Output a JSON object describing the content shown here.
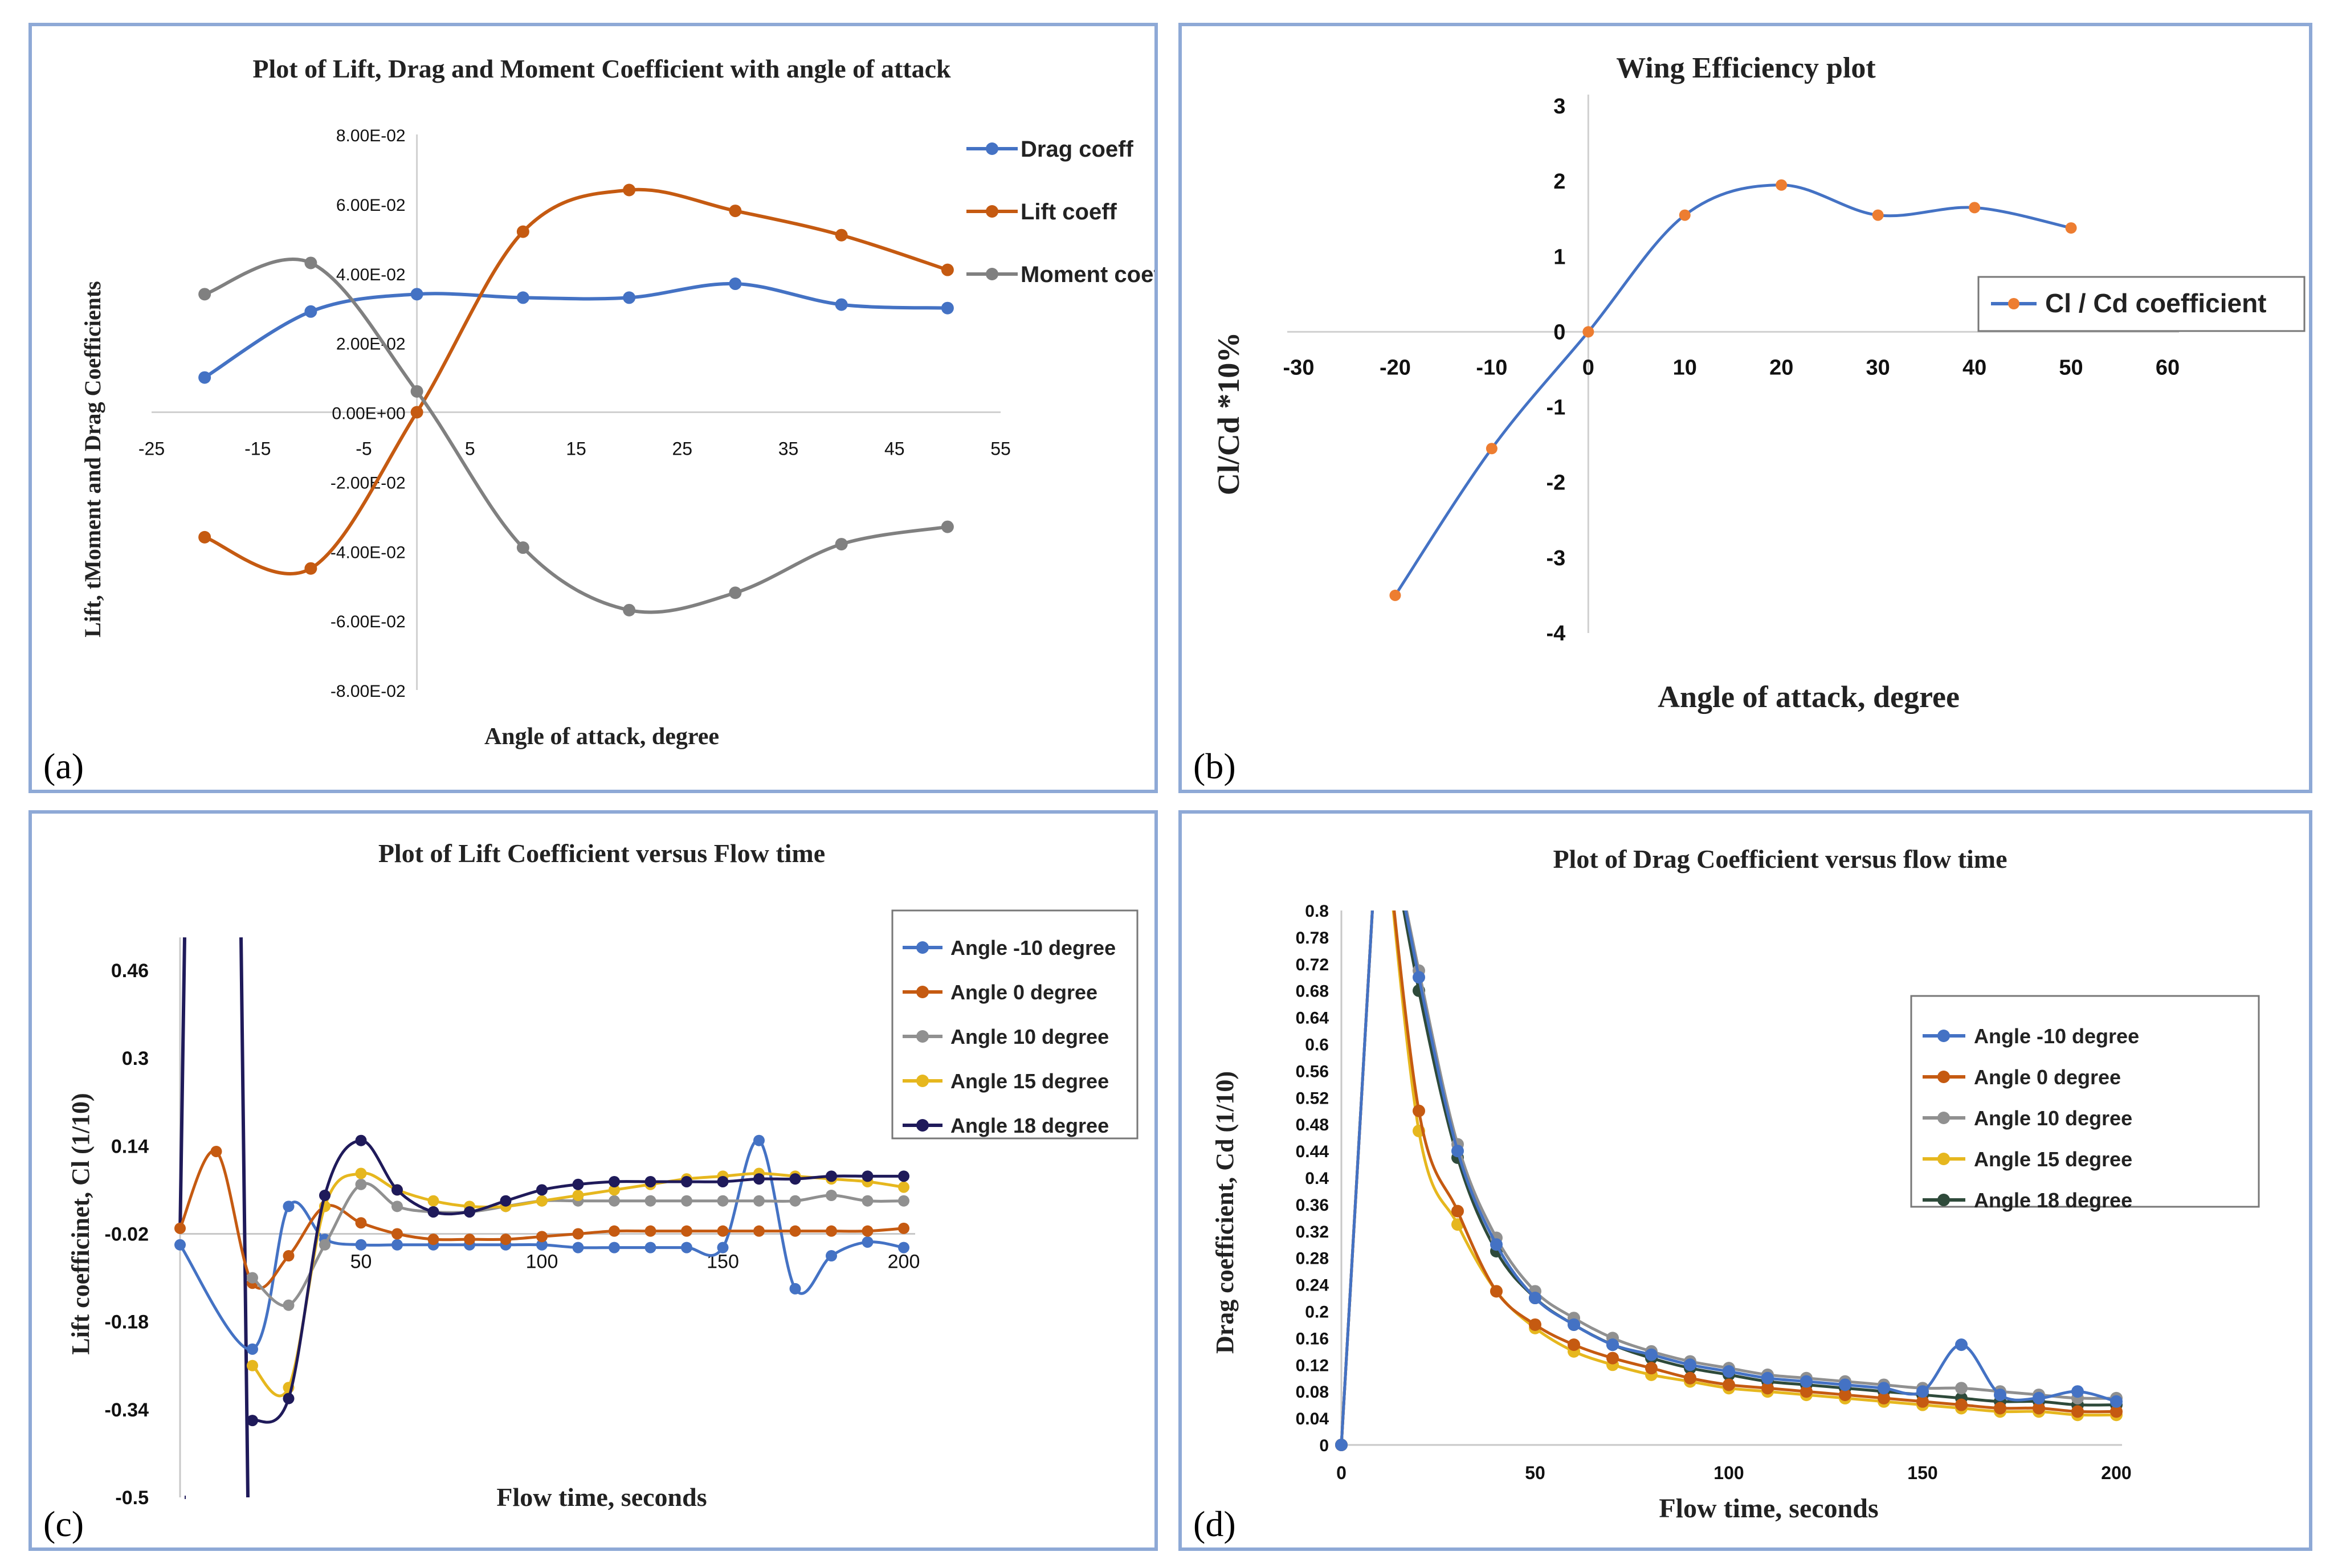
{
  "chart_data": [
    {
      "panel_label": "(a)",
      "type": "line",
      "title": "Plot of Lift, Drag and Moment Coefficient with angle of attack",
      "xlabel": "Angle of attack, degree",
      "ylabel": "Lift, tMoment and Drag Coefficients",
      "xlim": [
        -25,
        55
      ],
      "ylim": [
        -0.08,
        0.08
      ],
      "x_ticks": [
        "-25",
        "-15",
        "-5",
        "5",
        "15",
        "25",
        "35",
        "45",
        "55"
      ],
      "y_ticks": [
        "8.00E-02",
        "6.00E-02",
        "4.00E-02",
        "2.00E-02",
        "0.00E+00",
        "-2.00E-02",
        "-4.00E-02",
        "-6.00E-02",
        "-8.00E-02"
      ],
      "x": [
        -20,
        -10,
        0,
        10,
        20,
        30,
        40,
        50
      ],
      "legend_position": "right",
      "series": [
        {
          "name": "Drag coeff",
          "color": "#4472c4",
          "values": [
            0.01,
            0.029,
            0.034,
            0.033,
            0.033,
            0.037,
            0.031,
            0.03
          ]
        },
        {
          "name": "Lift coeff",
          "color": "#c55a11",
          "values": [
            -0.036,
            -0.045,
            0.0,
            0.052,
            0.064,
            0.058,
            0.051,
            0.041
          ]
        },
        {
          "name": "Moment coeff",
          "color": "#808080",
          "values": [
            0.034,
            0.043,
            0.006,
            -0.039,
            -0.057,
            -0.052,
            -0.038,
            -0.033
          ]
        }
      ]
    },
    {
      "panel_label": "(b)",
      "type": "line",
      "title": "Wing Efficiency plot",
      "xlabel": "Angle of attack, degree",
      "ylabel": "Cl/Cd *10%",
      "xlim": [
        -30,
        60
      ],
      "ylim": [
        -4,
        3
      ],
      "x_ticks": [
        "-30",
        "-20",
        "-10",
        "0",
        "10",
        "20",
        "30",
        "40",
        "50",
        "60"
      ],
      "y_ticks": [
        "3",
        "2",
        "1",
        "0",
        "-1",
        "-2",
        "-3",
        "-4"
      ],
      "x": [
        -20,
        -10,
        0,
        10,
        20,
        30,
        40,
        50
      ],
      "legend_position": "right",
      "series": [
        {
          "name": "Cl / Cd coefficient",
          "color": "#4472c4",
          "marker": "#ed7d31",
          "values": [
            -3.5,
            -1.55,
            0.0,
            1.55,
            1.95,
            1.55,
            1.65,
            1.38
          ]
        }
      ]
    },
    {
      "panel_label": "(c)",
      "type": "line",
      "title": "Plot of Lift Coefficient versus Flow time",
      "xlabel": "Flow time, seconds",
      "ylabel": "Lift coefficinet, Cl (1/10)",
      "xlim": [
        0,
        200
      ],
      "ylim": [
        -0.5,
        0.52
      ],
      "x_ticks": [
        "50",
        "100",
        "150",
        "200"
      ],
      "y_ticks": [
        "0.46",
        "0.3",
        "0.14",
        "-0.02",
        "-0.18",
        "-0.34",
        "-0.5"
      ],
      "legend_position": "top-right",
      "series": [
        {
          "name": "Angle -10 degree",
          "color": "#4472c4",
          "x": [
            0,
            20,
            30,
            40,
            50,
            60,
            70,
            80,
            90,
            100,
            110,
            120,
            130,
            140,
            150,
            160,
            170,
            180,
            190,
            200
          ],
          "values": [
            -0.04,
            -0.23,
            0.03,
            -0.03,
            -0.04,
            -0.04,
            -0.04,
            -0.04,
            -0.04,
            -0.04,
            -0.045,
            -0.045,
            -0.045,
            -0.045,
            -0.045,
            0.15,
            -0.12,
            -0.06,
            -0.035,
            -0.045
          ]
        },
        {
          "name": "Angle 0 degree",
          "color": "#c55a11",
          "x": [
            0,
            10,
            20,
            30,
            40,
            50,
            60,
            70,
            80,
            90,
            100,
            110,
            120,
            130,
            140,
            150,
            160,
            170,
            180,
            190,
            200
          ],
          "values": [
            -0.01,
            0.13,
            -0.11,
            -0.06,
            0.03,
            0.0,
            -0.02,
            -0.03,
            -0.03,
            -0.03,
            -0.025,
            -0.02,
            -0.015,
            -0.015,
            -0.015,
            -0.015,
            -0.015,
            -0.015,
            -0.015,
            -0.015,
            -0.01
          ]
        },
        {
          "name": "Angle 10 degree",
          "color": "#909090",
          "x": [
            20,
            30,
            40,
            50,
            60,
            70,
            80,
            90,
            100,
            110,
            120,
            130,
            140,
            150,
            160,
            170,
            180,
            190,
            200
          ],
          "values": [
            -0.1,
            -0.15,
            -0.04,
            0.07,
            0.03,
            0.02,
            0.02,
            0.03,
            0.04,
            0.04,
            0.04,
            0.04,
            0.04,
            0.04,
            0.04,
            0.04,
            0.05,
            0.04,
            0.04
          ]
        },
        {
          "name": "Angle 15 degree",
          "color": "#e6b71e",
          "x": [
            20,
            30,
            40,
            50,
            60,
            70,
            80,
            90,
            100,
            110,
            120,
            130,
            140,
            150,
            160,
            170,
            180,
            190,
            200
          ],
          "values": [
            -0.26,
            -0.3,
            0.03,
            0.09,
            0.06,
            0.04,
            0.03,
            0.03,
            0.04,
            0.05,
            0.06,
            0.07,
            0.08,
            0.085,
            0.09,
            0.085,
            0.08,
            0.075,
            0.065
          ]
        },
        {
          "name": "Angle 18 degree",
          "color": "#1f1a5a",
          "x": [
            20,
            30,
            40,
            50,
            60,
            70,
            80,
            90,
            100,
            110,
            120,
            130,
            140,
            150,
            160,
            170,
            180,
            190,
            200
          ],
          "values": [
            -0.36,
            -0.32,
            0.05,
            0.15,
            0.06,
            0.02,
            0.02,
            0.04,
            0.06,
            0.07,
            0.075,
            0.075,
            0.075,
            0.075,
            0.08,
            0.08,
            0.085,
            0.085,
            0.085
          ]
        }
      ]
    },
    {
      "panel_label": "(d)",
      "type": "line",
      "title": "Plot of Drag Coefficient versus flow time",
      "xlabel": "Flow time, seconds",
      "ylabel": "Drag coefficient, Cd (1/10)",
      "xlim": [
        0,
        200
      ],
      "ylim": [
        0,
        0.8
      ],
      "x_ticks": [
        "0",
        "50",
        "100",
        "150",
        "200"
      ],
      "y_ticks": [
        "0.8",
        "0.78",
        "0.72",
        "0.68",
        "0.64",
        "0.6",
        "0.56",
        "0.52",
        "0.48",
        "0.44",
        "0.4",
        "0.36",
        "0.32",
        "0.28",
        "0.24",
        "0.2",
        "0.16",
        "0.12",
        "0.08",
        "0.04",
        "0"
      ],
      "x": [
        0,
        10,
        20,
        30,
        40,
        50,
        60,
        70,
        80,
        90,
        100,
        110,
        120,
        130,
        140,
        150,
        160,
        170,
        180,
        190,
        200
      ],
      "legend_position": "top-right",
      "series": [
        {
          "name": "Angle -10 degree",
          "color": "#4472c4",
          "values": [
            0,
            1.0,
            0.7,
            0.44,
            0.3,
            0.22,
            0.18,
            0.15,
            0.135,
            0.12,
            0.11,
            0.1,
            0.095,
            0.09,
            0.085,
            0.08,
            0.15,
            0.075,
            0.07,
            0.08,
            0.065
          ]
        },
        {
          "name": "Angle 0 degree",
          "color": "#c55a11",
          "values": [
            0,
            1.0,
            0.5,
            0.35,
            0.23,
            0.18,
            0.15,
            0.13,
            0.115,
            0.1,
            0.09,
            0.085,
            0.08,
            0.075,
            0.07,
            0.065,
            0.06,
            0.055,
            0.055,
            0.05,
            0.05
          ]
        },
        {
          "name": "Angle 10 degree",
          "color": "#909090",
          "values": [
            0,
            1.0,
            0.71,
            0.45,
            0.31,
            0.23,
            0.19,
            0.16,
            0.14,
            0.125,
            0.115,
            0.105,
            0.1,
            0.095,
            0.09,
            0.085,
            0.085,
            0.08,
            0.075,
            0.07,
            0.07
          ]
        },
        {
          "name": "Angle 15 degree",
          "color": "#e6b71e",
          "values": [
            0,
            1.0,
            0.47,
            0.33,
            0.23,
            0.175,
            0.14,
            0.12,
            0.105,
            0.095,
            0.085,
            0.08,
            0.075,
            0.07,
            0.065,
            0.06,
            0.055,
            0.05,
            0.05,
            0.045,
            0.045
          ]
        },
        {
          "name": "Angle 18 degree",
          "color": "#2e4a3a",
          "values": [
            0,
            1.0,
            0.68,
            0.43,
            0.29,
            0.22,
            0.18,
            0.15,
            0.13,
            0.115,
            0.105,
            0.095,
            0.09,
            0.085,
            0.08,
            0.075,
            0.07,
            0.065,
            0.065,
            0.06,
            0.06
          ]
        }
      ]
    }
  ]
}
